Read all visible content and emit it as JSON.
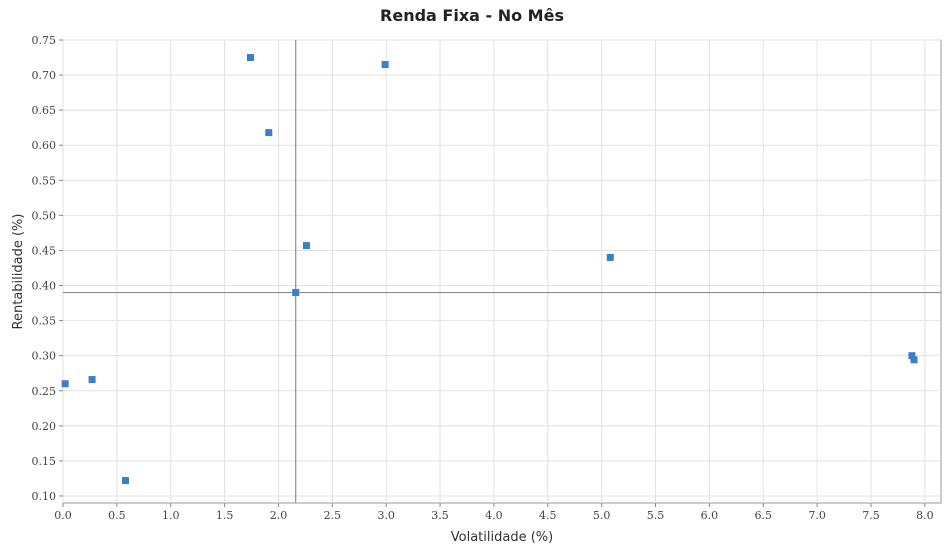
{
  "chart_data": {
    "type": "scatter",
    "title": "Renda Fixa - No Mês",
    "xlabel": "Volatilidade (%)",
    "ylabel": "Rentabilidade (%)",
    "xlim": [
      0.0,
      8.15
    ],
    "ylim": [
      0.09,
      0.75
    ],
    "x_ticks": [
      "0.0",
      "0.5",
      "1.0",
      "1.5",
      "2.0",
      "2.5",
      "3.0",
      "3.5",
      "4.0",
      "4.5",
      "5.0",
      "5.5",
      "6.0",
      "6.5",
      "7.0",
      "7.5",
      "8.0"
    ],
    "y_ticks": [
      "0.10",
      "0.15",
      "0.20",
      "0.25",
      "0.30",
      "0.35",
      "0.40",
      "0.45",
      "0.50",
      "0.55",
      "0.60",
      "0.65",
      "0.70",
      "0.75"
    ],
    "grid": true,
    "reference_lines": {
      "x": 2.16,
      "y": 0.39
    },
    "series": [
      {
        "color": "#3a7fc9",
        "points": [
          {
            "x": 0.02,
            "y": 0.26
          },
          {
            "x": 0.27,
            "y": 0.266
          },
          {
            "x": 0.58,
            "y": 0.122
          },
          {
            "x": 1.74,
            "y": 0.725
          },
          {
            "x": 1.91,
            "y": 0.618
          },
          {
            "x": 2.16,
            "y": 0.39
          },
          {
            "x": 2.26,
            "y": 0.457
          },
          {
            "x": 2.99,
            "y": 0.715
          },
          {
            "x": 5.08,
            "y": 0.44
          },
          {
            "x": 7.88,
            "y": 0.3
          },
          {
            "x": 7.9,
            "y": 0.294
          }
        ]
      }
    ]
  }
}
